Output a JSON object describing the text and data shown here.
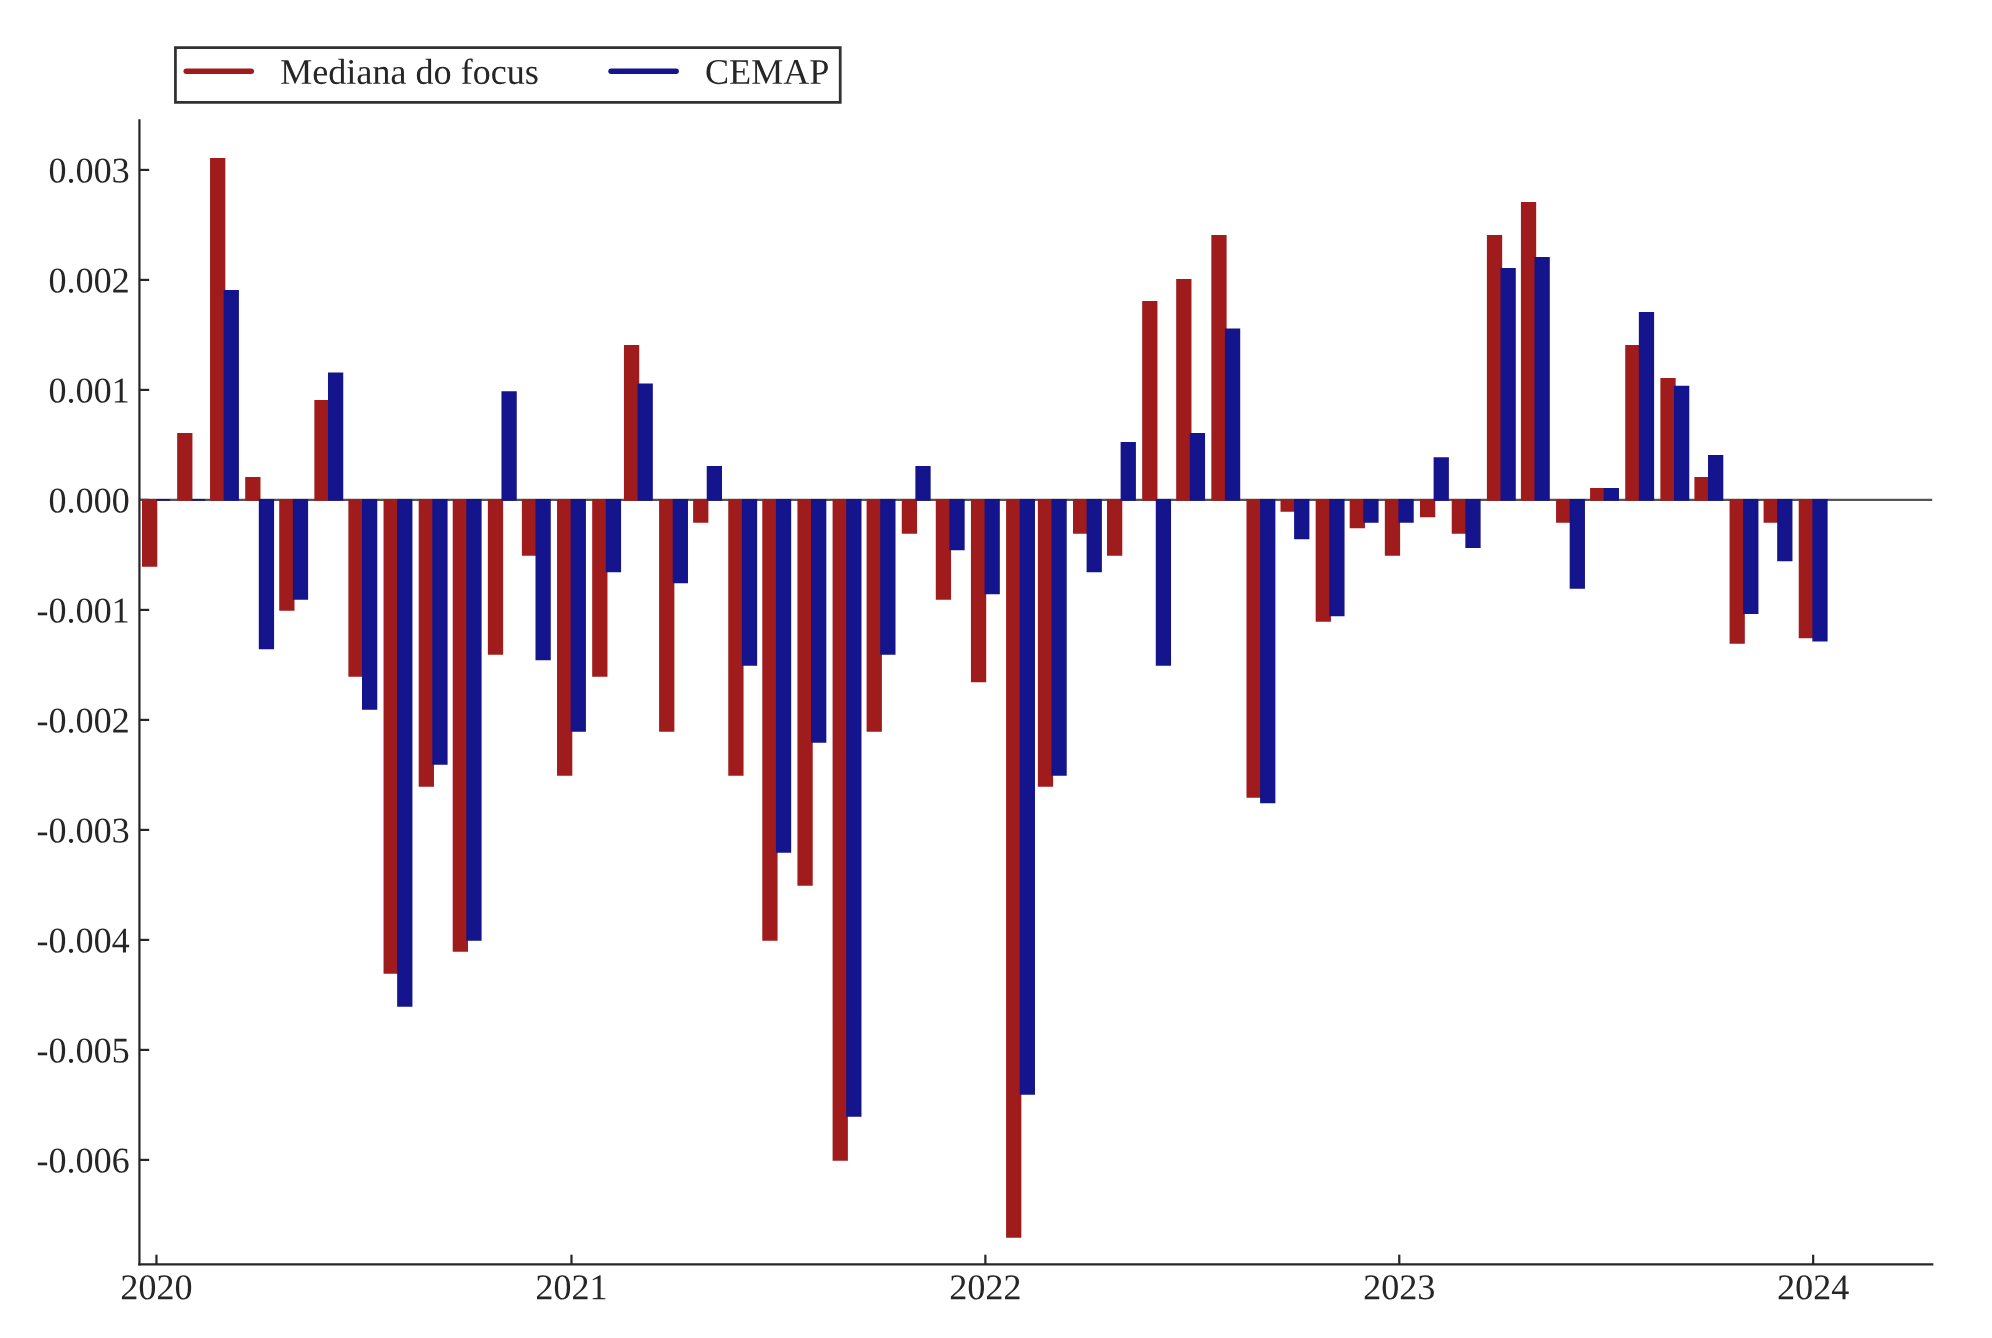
{
  "chart_data": {
    "type": "bar",
    "x": [
      "2020-01",
      "2020-02",
      "2020-03",
      "2020-04",
      "2020-05",
      "2020-06",
      "2020-07",
      "2020-08",
      "2020-09",
      "2020-10",
      "2020-11",
      "2020-12",
      "2021-01",
      "2021-02",
      "2021-03",
      "2021-04",
      "2021-05",
      "2021-06",
      "2021-07",
      "2021-08",
      "2021-09",
      "2021-10",
      "2021-11",
      "2021-12",
      "2022-01",
      "2022-02",
      "2022-03",
      "2022-04",
      "2022-05",
      "2022-06",
      "2022-07",
      "2022-08",
      "2022-09",
      "2022-10",
      "2022-11",
      "2022-12",
      "2023-01",
      "2023-02",
      "2023-03",
      "2023-04",
      "2023-05",
      "2023-06",
      "2023-07",
      "2023-08",
      "2023-09",
      "2023-10",
      "2023-11",
      "2023-12",
      "2024-01"
    ],
    "series": [
      {
        "name": "Mediana do focus",
        "color": "#a01c1c",
        "values": [
          -0.0006,
          0.0006,
          0.0031,
          0.0002,
          -0.001,
          0.0009,
          -0.0016,
          -0.0043,
          -0.0026,
          -0.0041,
          -0.0014,
          -0.0005,
          -0.0025,
          -0.0016,
          0.0014,
          -0.0021,
          -0.0002,
          -0.0025,
          -0.004,
          -0.0035,
          -0.006,
          -0.0021,
          -0.0003,
          -0.0009,
          -0.00165,
          -0.0067,
          -0.0026,
          -0.0003,
          -0.0005,
          0.0018,
          0.002,
          0.0024,
          -0.0027,
          -0.0001,
          -0.0011,
          -0.00025,
          -0.0005,
          -0.00015,
          -0.0003,
          0.0024,
          0.0027,
          -0.0002,
          0.0001,
          0.0014,
          0.0011,
          0.0002,
          -0.0013,
          -0.0002,
          -0.00125
        ]
      },
      {
        "name": "CEMAP",
        "color": "#14148c",
        "values": [
          0.0,
          0.0,
          0.0019,
          -0.00135,
          -0.0009,
          0.00115,
          -0.0019,
          -0.0046,
          -0.0024,
          -0.004,
          0.00098,
          -0.00145,
          -0.0021,
          -0.00065,
          0.00105,
          -0.00075,
          0.0003,
          -0.0015,
          -0.0032,
          -0.0022,
          -0.0056,
          -0.0014,
          0.0003,
          -0.00045,
          -0.00085,
          -0.0054,
          -0.0025,
          -0.00065,
          0.00052,
          -0.0015,
          0.0006,
          0.00155,
          -0.00275,
          -0.00035,
          -0.00105,
          -0.0002,
          -0.0002,
          0.00038,
          -0.00043,
          0.0021,
          0.0022,
          -0.0008,
          0.0001,
          0.0017,
          0.00103,
          0.0004,
          -0.00103,
          -0.00055,
          -0.00128
        ]
      }
    ],
    "xlim": [
      "2019-12-17",
      "2024-04-15"
    ],
    "xticks": [
      {
        "value": "2020",
        "label": "2020"
      },
      {
        "value": "2021",
        "label": "2021"
      },
      {
        "value": "2022",
        "label": "2022"
      },
      {
        "value": "2023",
        "label": "2023"
      },
      {
        "value": "2024",
        "label": "2024"
      }
    ],
    "ylim": [
      -0.00695,
      0.00345
    ],
    "yticks": [
      -0.006,
      -0.005,
      -0.004,
      -0.003,
      -0.002,
      -0.001,
      {
        "value": 0,
        "label": "0.000"
      },
      0.001,
      0.002,
      0.003
    ],
    "ref_lines": [
      {
        "axis": "y",
        "value": 0,
        "color": "#555555"
      }
    ],
    "legend": "top left",
    "grid": false
  }
}
